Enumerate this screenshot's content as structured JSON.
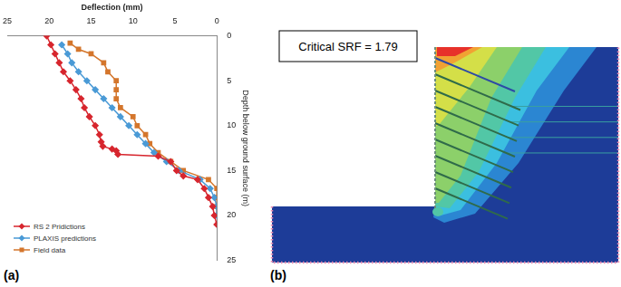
{
  "chart_data": {
    "type": "line",
    "title": "Deflection (mm)",
    "y_label": "Depth below ground surface (m)",
    "xlim": [
      25,
      0
    ],
    "xticks": [
      25,
      20,
      15,
      10,
      5,
      0
    ],
    "ylim": [
      25,
      0
    ],
    "yticks": [
      0,
      5,
      10,
      15,
      20,
      25
    ],
    "grid": false,
    "legend": "lower left",
    "series": [
      {
        "name": "RS 2 Pridictions",
        "color": "#d7262e",
        "marker": "diamond",
        "x": [
          20.3,
          19.8,
          19.3,
          18.8,
          18.3,
          17.5,
          16.8,
          16.2,
          15.8,
          15.2,
          14.5,
          14.0,
          13.8,
          13.6,
          12.5,
          12.0,
          11.8,
          7.0,
          5.5,
          4.8,
          4.0,
          2.3,
          1.5,
          1.0,
          0.5,
          0.3,
          0.0
        ],
        "values": [
          0,
          1,
          2,
          3,
          4,
          5,
          6,
          7,
          8,
          9,
          10,
          11,
          11.8,
          12.3,
          12.6,
          12.8,
          13.2,
          13.4,
          14,
          15,
          15.6,
          16,
          17,
          18,
          19,
          20,
          21
        ]
      },
      {
        "name": "PLAXIS predictions",
        "color": "#4a9ad6",
        "marker": "diamond",
        "x": [
          18.5,
          17.8,
          17.3,
          16.5,
          15.5,
          14.5,
          13.5,
          12.5,
          11.5,
          10.5,
          9.5,
          8.5,
          7.5,
          6.0,
          4.5,
          2.0,
          0.8,
          0.3,
          0.0,
          0.0
        ],
        "values": [
          1,
          2,
          3,
          4,
          5,
          6,
          7,
          8,
          9,
          10,
          11,
          12,
          13,
          14,
          15,
          16,
          17,
          18,
          19,
          20
        ]
      },
      {
        "name": "Field data",
        "color": "#d4762c",
        "marker": "square",
        "x": [
          17.5,
          16.5,
          15.0,
          13.5,
          13.0,
          12.0,
          12.0,
          12.0,
          11.5,
          10.0,
          9.5,
          8.5,
          8.0,
          7.0,
          5.5,
          4.0,
          1.0,
          0.0,
          0.0,
          0.0,
          0.0
        ],
        "values": [
          0.8,
          1.5,
          2,
          3,
          4,
          5,
          6,
          7,
          8,
          9,
          10,
          11,
          12,
          13,
          14,
          15,
          16,
          17,
          18,
          19,
          20
        ]
      }
    ]
  },
  "panels": [
    {
      "label": "(a)"
    },
    {
      "label": "(b)",
      "annotation": "Critical SRF = 1.79"
    }
  ]
}
